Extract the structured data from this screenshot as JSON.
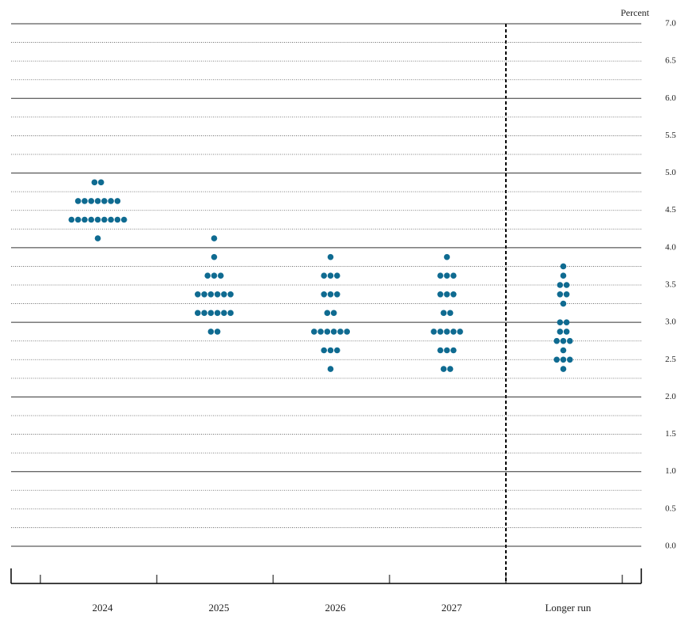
{
  "chart_data": {
    "type": "dot",
    "y_label": "Percent",
    "categories": [
      "2024",
      "2025",
      "2026",
      "2027",
      "Longer run"
    ],
    "values": [
      [
        4.875,
        4.875,
        4.625,
        4.625,
        4.625,
        4.625,
        4.625,
        4.625,
        4.625,
        4.375,
        4.375,
        4.375,
        4.375,
        4.375,
        4.375,
        4.375,
        4.375,
        4.375,
        4.125
      ],
      [
        4.125,
        3.875,
        3.625,
        3.625,
        3.625,
        3.375,
        3.375,
        3.375,
        3.375,
        3.375,
        3.375,
        3.125,
        3.125,
        3.125,
        3.125,
        3.125,
        3.125,
        2.875,
        2.875
      ],
      [
        3.875,
        3.625,
        3.625,
        3.625,
        3.375,
        3.375,
        3.375,
        3.125,
        3.125,
        2.875,
        2.875,
        2.875,
        2.875,
        2.875,
        2.875,
        2.625,
        2.625,
        2.625,
        2.375
      ],
      [
        3.875,
        3.625,
        3.625,
        3.625,
        3.375,
        3.375,
        3.375,
        3.125,
        3.125,
        2.875,
        2.875,
        2.875,
        2.875,
        2.875,
        2.625,
        2.625,
        2.625,
        2.375,
        2.375
      ],
      [
        3.75,
        3.625,
        3.5,
        3.5,
        3.375,
        3.375,
        3.25,
        3.0,
        3.0,
        2.875,
        2.875,
        2.75,
        2.75,
        2.75,
        2.625,
        2.5,
        2.5,
        2.5,
        2.375
      ]
    ],
    "color": "#0f6b91",
    "ylim": [
      0,
      7
    ],
    "yticks": [
      {
        "value": 0,
        "label": "0.0"
      },
      {
        "value": 0.5,
        "label": "0.5"
      },
      {
        "value": 1,
        "label": "1.0"
      },
      {
        "value": 1.5,
        "label": "1.5"
      },
      {
        "value": 2,
        "label": "2.0"
      },
      {
        "value": 2.5,
        "label": "2.5"
      },
      {
        "value": 3,
        "label": "3.0"
      },
      {
        "value": 3.5,
        "label": "3.5"
      },
      {
        "value": 4,
        "label": "4.0"
      },
      {
        "value": 4.5,
        "label": "4.5"
      },
      {
        "value": 5,
        "label": "5.0"
      },
      {
        "value": 5.5,
        "label": "5.5"
      },
      {
        "value": 6,
        "label": "6.0"
      },
      {
        "value": 6.5,
        "label": "6.5"
      },
      {
        "value": 7,
        "label": "7.0"
      }
    ],
    "grid": true
  }
}
